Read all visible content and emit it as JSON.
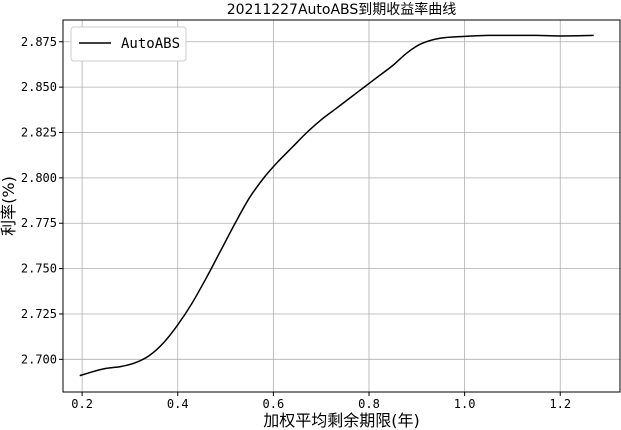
{
  "chart_data": {
    "type": "line",
    "title": "20211227AutoABS到期收益率曲线",
    "xlabel": "加权平均剩余期限(年)",
    "ylabel": "利率(%)",
    "xlim": [
      0.16,
      1.325
    ],
    "ylim": [
      2.682,
      2.887
    ],
    "xticks": [
      0.2,
      0.4,
      0.6,
      0.8,
      1.0,
      1.2
    ],
    "xtick_labels": [
      "0.2",
      "0.4",
      "0.6",
      "0.8",
      "1.0",
      "1.2"
    ],
    "yticks": [
      2.7,
      2.725,
      2.75,
      2.775,
      2.8,
      2.825,
      2.85,
      2.875
    ],
    "ytick_labels": [
      "2.700",
      "2.725",
      "2.750",
      "2.775",
      "2.800",
      "2.825",
      "2.850",
      "2.875"
    ],
    "grid": true,
    "legend": {
      "position": "top-left",
      "entries": [
        "AutoABS"
      ]
    },
    "series": [
      {
        "name": "AutoABS",
        "color": "#000000",
        "x": [
          0.195,
          0.22,
          0.25,
          0.28,
          0.31,
          0.34,
          0.37,
          0.4,
          0.43,
          0.46,
          0.49,
          0.52,
          0.55,
          0.58,
          0.61,
          0.64,
          0.67,
          0.7,
          0.73,
          0.76,
          0.79,
          0.82,
          0.85,
          0.88,
          0.91,
          0.95,
          1.0,
          1.05,
          1.1,
          1.15,
          1.2,
          1.27
        ],
        "y": [
          2.691,
          2.693,
          2.695,
          2.696,
          2.698,
          2.702,
          2.709,
          2.719,
          2.731,
          2.745,
          2.76,
          2.775,
          2.789,
          2.8,
          2.809,
          2.817,
          2.825,
          2.832,
          2.838,
          2.844,
          2.85,
          2.856,
          2.862,
          2.869,
          2.874,
          2.877,
          2.878,
          2.8785,
          2.8785,
          2.8785,
          2.8782,
          2.8785
        ]
      }
    ]
  }
}
